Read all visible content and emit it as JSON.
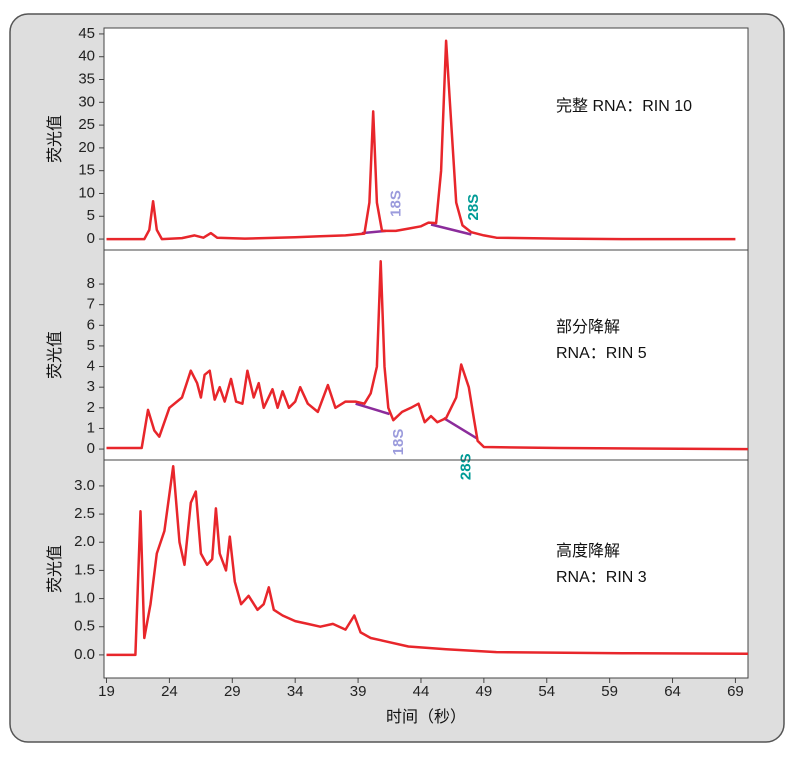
{
  "chart_data": [
    {
      "type": "line",
      "ylabel": "荧光值",
      "annotation": [
        "完整 RNA：RIN 10"
      ],
      "xlim": [
        18.8,
        70
      ],
      "ylim": [
        -2.4,
        46.3
      ],
      "yticks": [
        0,
        5,
        10,
        15,
        20,
        25,
        30,
        35,
        40,
        45
      ],
      "series": [
        {
          "color": "#e8262b",
          "x": [
            19,
            22,
            22.4,
            22.7,
            23.0,
            23.4,
            25,
            26,
            26.7,
            27.3,
            27.8,
            30,
            34,
            36,
            38,
            39.5,
            39.9,
            40.2,
            40.5,
            40.9,
            42,
            43,
            44,
            44.6,
            45.2,
            45.6,
            46.0,
            46.3,
            46.8,
            47.3,
            48,
            49,
            50,
            55,
            60,
            69
          ],
          "values": [
            0,
            0,
            2,
            8.3,
            2,
            0,
            0.2,
            0.8,
            0.3,
            1.3,
            0.3,
            0.1,
            0.4,
            0.6,
            0.8,
            1.2,
            8,
            28,
            8,
            1.8,
            1.8,
            2.3,
            2.8,
            3.6,
            3.5,
            15,
            43.5,
            30,
            8,
            3,
            1.5,
            0.8,
            0.3,
            0.1,
            0,
            0
          ]
        }
      ],
      "peak_baselines": [
        {
          "label": "18S",
          "x": [
            39.3,
            41.2
          ],
          "values": [
            1.3,
            1.8
          ]
        },
        {
          "label": "28S",
          "x": [
            44.8,
            48
          ],
          "values": [
            3.2,
            1.0
          ]
        }
      ]
    },
    {
      "type": "line",
      "ylabel": "荧光值",
      "annotation": [
        "部分降解",
        "RNA：RIN 5"
      ],
      "xlim": [
        18.8,
        70
      ],
      "ylim": [
        -0.53,
        9.65
      ],
      "yticks": [
        0,
        1,
        2,
        3,
        4,
        5,
        6,
        7,
        8
      ],
      "series": [
        {
          "color": "#e8262b",
          "x": [
            19,
            21.8,
            22.3,
            22.8,
            23.2,
            24,
            25,
            25.7,
            26.2,
            26.5,
            26.8,
            27.2,
            27.6,
            28,
            28.4,
            28.9,
            29.3,
            29.8,
            30.2,
            30.7,
            31.1,
            31.5,
            32.2,
            32.6,
            33,
            33.5,
            34,
            34.4,
            35,
            35.8,
            36.6,
            37.2,
            38,
            38.8,
            39.5,
            40,
            40.5,
            40.8,
            41.1,
            41.4,
            41.8,
            42.5,
            43.2,
            43.8,
            44.3,
            44.8,
            45.3,
            46,
            46.8,
            47.2,
            47.8,
            48.2,
            48.5,
            49,
            55,
            70
          ],
          "values": [
            0.05,
            0.05,
            1.9,
            0.9,
            0.6,
            2,
            2.5,
            3.8,
            3.2,
            2.5,
            3.6,
            3.8,
            2.4,
            3,
            2.3,
            3.4,
            2.3,
            2.2,
            3.8,
            2.5,
            3.2,
            2.0,
            2.9,
            2.0,
            2.8,
            2.0,
            2.3,
            3.0,
            2.2,
            1.8,
            3.1,
            2.0,
            2.3,
            2.3,
            2.2,
            2.7,
            4,
            9.1,
            4,
            2.0,
            1.4,
            1.8,
            2.0,
            2.2,
            1.3,
            1.6,
            1.3,
            1.5,
            2.5,
            4.1,
            3,
            1.5,
            0.4,
            0.1,
            0.05,
            0
          ]
        }
      ],
      "peak_baselines": [
        {
          "label": "18S",
          "x": [
            38.8,
            41.5
          ],
          "values": [
            2.2,
            1.7
          ]
        },
        {
          "label": "28S",
          "x": [
            45.8,
            48.5
          ],
          "values": [
            1.5,
            0.5
          ]
        }
      ]
    },
    {
      "type": "line",
      "ylabel": "荧光值",
      "annotation": [
        "高度降解",
        "RNA：RIN 3"
      ],
      "xlabel": "时间（秒）",
      "xlim": [
        18.8,
        70
      ],
      "xticks": [
        19,
        24,
        29,
        34,
        39,
        44,
        49,
        54,
        59,
        64,
        69
      ],
      "ylim": [
        -0.41,
        3.46
      ],
      "yticks": [
        {
          "value": 0,
          "label": "0.0"
        },
        0.5,
        {
          "value": 1,
          "label": "1.0"
        },
        1.5,
        {
          "value": 2,
          "label": "2.0"
        },
        2.5,
        {
          "value": 3,
          "label": "3.0"
        }
      ],
      "series": [
        {
          "color": "#e8262b",
          "x": [
            19,
            21.3,
            21.7,
            22.0,
            22.5,
            23,
            23.6,
            24.3,
            24.8,
            25.2,
            25.7,
            26.1,
            26.5,
            27,
            27.4,
            27.7,
            28,
            28.5,
            28.8,
            29.2,
            29.7,
            30.3,
            31,
            31.5,
            31.9,
            32.3,
            33,
            34,
            35,
            36,
            37,
            38,
            38.7,
            39.2,
            40,
            41,
            43,
            46,
            50,
            60,
            70
          ],
          "values": [
            0,
            0,
            2.55,
            0.3,
            0.9,
            1.8,
            2.2,
            3.35,
            2,
            1.6,
            2.7,
            2.9,
            1.8,
            1.6,
            1.7,
            2.6,
            1.8,
            1.5,
            2.1,
            1.3,
            0.9,
            1.05,
            0.8,
            0.9,
            1.2,
            0.8,
            0.7,
            0.6,
            0.55,
            0.5,
            0.55,
            0.45,
            0.7,
            0.4,
            0.3,
            0.25,
            0.15,
            0.1,
            0.05,
            0.03,
            0.02
          ]
        }
      ]
    }
  ]
}
